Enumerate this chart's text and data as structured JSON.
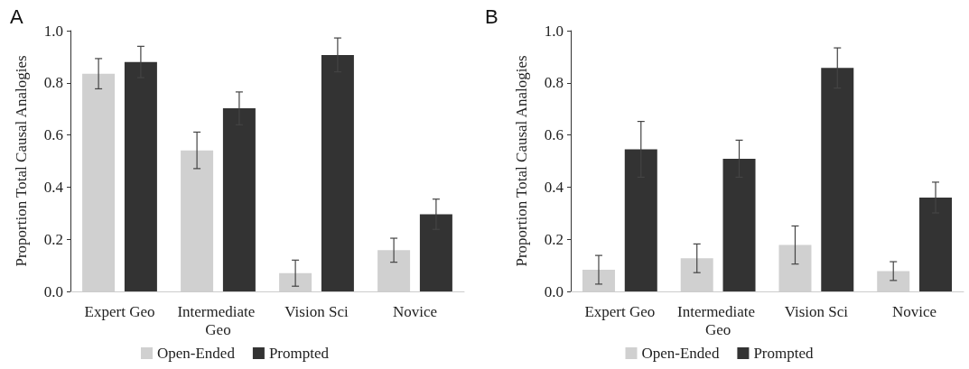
{
  "chart_data": [
    {
      "type": "bar",
      "title": "A",
      "ylabel": "Proportion Total Causal Analogies",
      "categories": [
        "Expert Geo",
        "Intermediate Geo",
        "Vision Sci",
        "Novice"
      ],
      "series": [
        {
          "name": "Open-Ended",
          "color": "#d0d0d0",
          "values": [
            0.835,
            0.541,
            0.07,
            0.158
          ],
          "errors": [
            0.058,
            0.07,
            0.05,
            0.046
          ]
        },
        {
          "name": "Prompted",
          "color": "#333333",
          "values": [
            0.88,
            0.702,
            0.907,
            0.296
          ],
          "errors": [
            0.06,
            0.063,
            0.065,
            0.058
          ]
        }
      ],
      "ylim": [
        0,
        1
      ],
      "yticks": [
        {
          "value": 0,
          "label": "0.0"
        },
        {
          "value": 0.2,
          "label": "0.2"
        },
        {
          "value": 0.4,
          "label": "0.4"
        },
        {
          "value": 0.6,
          "label": "0.6"
        },
        {
          "value": 0.8,
          "label": "0.8"
        },
        {
          "value": 1,
          "label": "1.0"
        }
      ],
      "grid": false,
      "legend": "bottom"
    },
    {
      "type": "bar",
      "title": "B",
      "ylabel": "Proportion Total Causal Analogies",
      "categories": [
        "Expert Geo",
        "Intermediate Geo",
        "Vision Sci",
        "Novice"
      ],
      "series": [
        {
          "name": "Open-Ended",
          "color": "#d0d0d0",
          "values": [
            0.083,
            0.127,
            0.178,
            0.078
          ],
          "errors": [
            0.055,
            0.055,
            0.073,
            0.036
          ]
        },
        {
          "name": "Prompted",
          "color": "#333333",
          "values": [
            0.545,
            0.509,
            0.857,
            0.36
          ],
          "errors": [
            0.107,
            0.071,
            0.077,
            0.059
          ]
        }
      ],
      "ylim": [
        0,
        1
      ],
      "yticks": [
        {
          "value": 0,
          "label": "0.0"
        },
        {
          "value": 0.2,
          "label": "0.2"
        },
        {
          "value": 0.4,
          "label": "0.4"
        },
        {
          "value": 0.6,
          "label": "0.6"
        },
        {
          "value": 0.8,
          "label": "0.8"
        },
        {
          "value": 1,
          "label": "1.0"
        }
      ],
      "grid": false,
      "legend": "bottom"
    }
  ]
}
